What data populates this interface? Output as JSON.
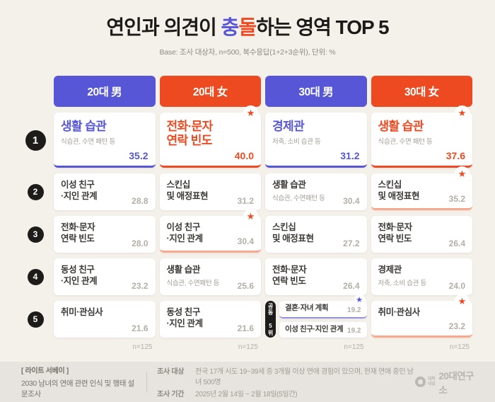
{
  "title": {
    "part1": "연인과 의견이 ",
    "hl1": "충",
    "hl2": "돌",
    "part2": "하는 영역 TOP 5",
    "base_note": "Base: 조사 대상자, n=500, 복수응답(1+2+3순위), 단위: %"
  },
  "icons": {
    "star": "★"
  },
  "colors": {
    "blue": "#5656D6",
    "red": "#ED4A21",
    "bg": "#F4F0EA",
    "footer_bg": "#E7E3DE",
    "badge": "#1E1C1A"
  },
  "rank_badges": [
    "1",
    "2",
    "3",
    "4",
    "5"
  ],
  "columns": [
    {
      "header": "20대 男",
      "theme": "blue",
      "n_note": "n=125",
      "rank1": {
        "title": "생활 습관",
        "subtitle": "식습관, 수면 패턴 등",
        "value": "35.2"
      },
      "rank2": {
        "title": "이성 친구\n·지인 관계",
        "value": "28.8"
      },
      "rank3": {
        "title": "전화·문자\n연락 빈도",
        "value": "28.0"
      },
      "rank4": {
        "title": "동성 친구\n·지인 관계",
        "value": "23.2"
      },
      "rank5": {
        "title": "취미·관심사",
        "value": "21.6"
      }
    },
    {
      "header": "20대 女",
      "theme": "red",
      "n_note": "n=125",
      "rank1": {
        "title": "전화·문자\n연락 빈도",
        "value": "40.0"
      },
      "rank2": {
        "title": "스킨십\n및 애정표현",
        "value": "31.2"
      },
      "rank3": {
        "title": "이성 친구\n·지인 관계",
        "value": "30.4"
      },
      "rank4": {
        "title": "생활 습관",
        "subtitle": "식습관, 수면패턴 등",
        "value": "25.6"
      },
      "rank5": {
        "title": "동성 친구\n·지인 관계",
        "value": "21.6"
      }
    },
    {
      "header": "30대 男",
      "theme": "blue",
      "n_note": "n=125",
      "rank1": {
        "title": "경제관",
        "subtitle": "저축, 소비 습관 등",
        "value": "31.2"
      },
      "rank2": {
        "title": "생활 습관",
        "subtitle": "식습관, 수면패턴 등",
        "value": "30.4"
      },
      "rank3": {
        "title": "스킨십\n및 애정표현",
        "value": "27.2"
      },
      "rank4": {
        "title": "전화·문자\n연락 빈도",
        "value": "26.4"
      },
      "rank5_tied": {
        "badge": "공동 5위",
        "items": [
          {
            "title": "결혼·자녀 계획",
            "value": "19.2"
          },
          {
            "title": "이성 친구·지인 관계",
            "value": "19.2"
          }
        ]
      }
    },
    {
      "header": "30대 女",
      "theme": "red",
      "n_note": "n=125",
      "rank1": {
        "title": "생활 습관",
        "subtitle": "식습관, 수면 패턴 등",
        "value": "37.6"
      },
      "rank2": {
        "title": "스킨십\n및 애정표현",
        "value": "35.2"
      },
      "rank3": {
        "title": "전화·문자\n연락 빈도",
        "value": "26.4"
      },
      "rank4": {
        "title": "경제관",
        "subtitle": "저축, 소비 습관 등",
        "value": "24.0"
      },
      "rank5": {
        "title": "취미·관심사",
        "value": "23.2"
      }
    }
  ],
  "footer": {
    "survey_tag": "[ 라이트 서베이 ]",
    "survey_title": "2030 남녀의 연애 관련 인식 및 행태 설문조사",
    "meta": [
      {
        "label": "조사 대상",
        "value": "전국 17개 시도 19~39세 중 3개월 이상 연애 경험이 있으며, 현재 연애 중인 남녀 500명"
      },
      {
        "label": "조사 기간",
        "value": "2025년 2월 14일 ~ 2월 18일(5일간)"
      }
    ],
    "logo_small": "대학내일",
    "logo_text": "20대연구소"
  },
  "chart_data": {
    "type": "table",
    "title": "연인과 의견이 충돌하는 영역 TOP 5",
    "base": "조사 대상자 n=500, 복수응답(1+2+3순위)",
    "unit": "%",
    "groups": [
      {
        "name": "20대 男",
        "n": 125,
        "ranking": [
          {
            "rank": 1,
            "area": "생활 습관 (식습관, 수면 패턴 등)",
            "value": 35.2
          },
          {
            "rank": 2,
            "area": "이성 친구·지인 관계",
            "value": 28.8
          },
          {
            "rank": 3,
            "area": "전화·문자 연락 빈도",
            "value": 28.0
          },
          {
            "rank": 4,
            "area": "동성 친구·지인 관계",
            "value": 23.2
          },
          {
            "rank": 5,
            "area": "취미·관심사",
            "value": 21.6
          }
        ]
      },
      {
        "name": "20대 女",
        "n": 125,
        "ranking": [
          {
            "rank": 1,
            "area": "전화·문자 연락 빈도",
            "value": 40.0
          },
          {
            "rank": 2,
            "area": "스킨십 및 애정표현",
            "value": 31.2
          },
          {
            "rank": 3,
            "area": "이성 친구·지인 관계",
            "value": 30.4
          },
          {
            "rank": 4,
            "area": "생활 습관 (식습관, 수면패턴 등)",
            "value": 25.6
          },
          {
            "rank": 5,
            "area": "동성 친구·지인 관계",
            "value": 21.6
          }
        ]
      },
      {
        "name": "30대 男",
        "n": 125,
        "ranking": [
          {
            "rank": 1,
            "area": "경제관 (저축, 소비 습관 등)",
            "value": 31.2
          },
          {
            "rank": 2,
            "area": "생활 습관 (식습관, 수면패턴 등)",
            "value": 30.4
          },
          {
            "rank": 3,
            "area": "스킨십 및 애정표현",
            "value": 27.2
          },
          {
            "rank": 4,
            "area": "전화·문자 연락 빈도",
            "value": 26.4
          },
          {
            "rank": 5,
            "area": "결혼·자녀 계획 (공동 5위)",
            "value": 19.2
          },
          {
            "rank": 5,
            "area": "이성 친구·지인 관계 (공동 5위)",
            "value": 19.2
          }
        ]
      },
      {
        "name": "30대 女",
        "n": 125,
        "ranking": [
          {
            "rank": 1,
            "area": "생활 습관 (식습관, 수면 패턴 등)",
            "value": 37.6
          },
          {
            "rank": 2,
            "area": "스킨십 및 애정표현",
            "value": 35.2
          },
          {
            "rank": 3,
            "area": "전화·문자 연락 빈도",
            "value": 26.4
          },
          {
            "rank": 4,
            "area": "경제관 (저축, 소비 습관 등)",
            "value": 24.0
          },
          {
            "rank": 5,
            "area": "취미·관심사",
            "value": 23.2
          }
        ]
      }
    ]
  }
}
